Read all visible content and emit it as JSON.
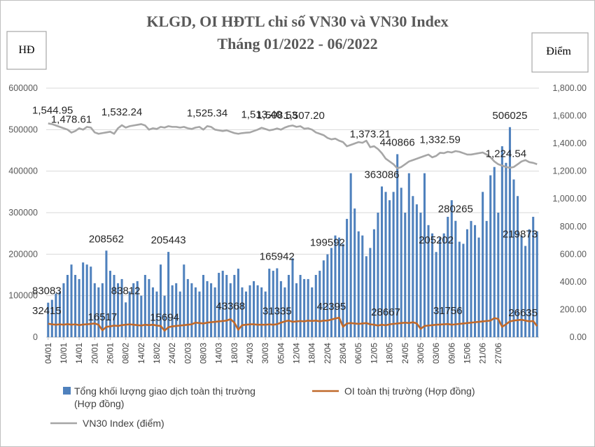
{
  "chart_data": {
    "type": "bar+line",
    "title": "KLGD, OI HĐTL chỉ số VN30 và VN30 Index",
    "subtitle": "Tháng 01/2022 - 06/2022",
    "y_left_label": "HĐ",
    "y_right_label": "Điểm",
    "y_left_ticks": [
      "0",
      "100000",
      "200000",
      "300000",
      "400000",
      "500000",
      "600000"
    ],
    "y_right_ticks": [
      "0.00",
      "200.00",
      "400.00",
      "600.00",
      "800.00",
      "1,000.00",
      "1,200.00",
      "1,400.00",
      "1,600.00",
      "1,800.00"
    ],
    "ylim_left": [
      0,
      600000
    ],
    "ylim_right": [
      0,
      1800
    ],
    "x_tick_labels": [
      "04/01",
      "10/01",
      "14/01",
      "20/01",
      "26/01",
      "08/02",
      "14/02",
      "18/02",
      "24/02",
      "02/03",
      "08/03",
      "14/03",
      "18/03",
      "24/03",
      "30/03",
      "05/04",
      "12/04",
      "18/04",
      "22/04",
      "28/04",
      "06/05",
      "12/05",
      "18/05",
      "24/05",
      "30/05",
      "03/06",
      "09/06",
      "15/06",
      "21/06",
      "27/06"
    ],
    "x_tick_step": 4,
    "grid": true,
    "legend_position": "bottom",
    "colors": {
      "volume": "#4f81bd",
      "oi": "#c0692a",
      "index": "#a6a6a6"
    },
    "series": [
      {
        "name": "Tổng khối lượng giao dịch toàn thị trường (Hợp đồng)",
        "type": "bar",
        "axis": "left",
        "values": [
          83083,
          90000,
          105000,
          110000,
          130000,
          150000,
          175000,
          150000,
          140000,
          180000,
          175000,
          170000,
          130000,
          120000,
          130000,
          208562,
          160000,
          150000,
          130000,
          140000,
          83812,
          110000,
          130000,
          135000,
          100000,
          150000,
          140000,
          120000,
          110000,
          175000,
          100000,
          205443,
          125000,
          130000,
          110000,
          175000,
          140000,
          130000,
          120000,
          110000,
          150000,
          135000,
          130000,
          120000,
          155000,
          160000,
          150000,
          130000,
          150000,
          165000,
          120000,
          110000,
          125000,
          135000,
          125000,
          120000,
          110000,
          165000,
          160000,
          165942,
          135000,
          120000,
          150000,
          190000,
          130000,
          150000,
          140000,
          140000,
          120000,
          150000,
          160000,
          185000,
          199592,
          215000,
          245000,
          240000,
          225000,
          285000,
          395000,
          310000,
          255000,
          245000,
          195000,
          215000,
          260000,
          300000,
          363086,
          350000,
          330000,
          350000,
          440866,
          360000,
          300000,
          395000,
          340000,
          320000,
          300000,
          395000,
          270000,
          250000,
          205202,
          240000,
          250000,
          290000,
          330000,
          280265,
          230000,
          225000,
          260000,
          280000,
          270000,
          240000,
          350000,
          280000,
          390000,
          410000,
          300000,
          460000,
          420000,
          506025,
          380000,
          340000,
          245000,
          219873,
          260000,
          290000,
          255000
        ]
      },
      {
        "name": "OI toàn thị trường (Hợp đồng)",
        "type": "line",
        "axis": "left",
        "values": [
          32415,
          31000,
          30000,
          31000,
          30000,
          31500,
          30000,
          31000,
          29000,
          30500,
          31000,
          32000,
          33000,
          30000,
          16517,
          25000,
          26000,
          28000,
          27000,
          29000,
          30000,
          31000,
          30000,
          29000,
          28000,
          30000,
          29000,
          30000,
          28000,
          27000,
          15694,
          24000,
          26000,
          27000,
          28000,
          29000,
          30000,
          31000,
          35000,
          34000,
          33000,
          35000,
          36000,
          37000,
          38000,
          39000,
          40000,
          43368,
          35000,
          18000,
          29000,
          30000,
          31000,
          31000,
          30000,
          30000,
          30000,
          31000,
          30000,
          31335,
          35000,
          38000,
          40000,
          37000,
          38000,
          39000,
          38000,
          40000,
          39000,
          40000,
          38000,
          40000,
          40000,
          42395,
          45000,
          47000,
          25000,
          33000,
          34000,
          33000,
          32000,
          33000,
          34000,
          31000,
          30000,
          28000,
          30000,
          28667,
          31000,
          32000,
          33000,
          34000,
          35000,
          34000,
          36000,
          33000,
          20000,
          27000,
          28000,
          29000,
          30000,
          30500,
          31000,
          31756,
          30000,
          31000,
          32000,
          33000,
          34000,
          35000,
          36000,
          37000,
          38000,
          39000,
          40000,
          46000,
          44000,
          25000,
          31000,
          38000,
          40000,
          41000,
          42000,
          40000,
          38000,
          39000,
          26635
        ]
      },
      {
        "name": "VN30 Index (điểm)",
        "type": "line",
        "axis": "right",
        "values": [
          1544.95,
          1540,
          1530,
          1520,
          1510,
          1500,
          1478.61,
          1490,
          1510,
          1500,
          1520,
          1515,
          1480,
          1470,
          1475,
          1480,
          1485,
          1470,
          1510,
          1532.24,
          1515,
          1525,
          1530,
          1535,
          1540,
          1530,
          1500,
          1510,
          1505,
          1520,
          1515,
          1525,
          1520,
          1520,
          1515,
          1520,
          1510,
          1505,
          1515,
          1520,
          1500,
          1525.34,
          1520,
          1500,
          1495,
          1490,
          1495,
          1485,
          1475,
          1470,
          1475,
          1478,
          1480,
          1490,
          1500,
          1513.4,
          1505,
          1495,
          1500,
          1508.53,
          1500,
          1515,
          1525,
          1530,
          1520,
          1525,
          1507.2,
          1510,
          1500,
          1480,
          1470,
          1460,
          1440,
          1430,
          1435,
          1420,
          1410,
          1380,
          1390,
          1400,
          1410,
          1405,
          1420,
          1373.21,
          1380,
          1360,
          1330,
          1290,
          1270,
          1250,
          1220,
          1230,
          1250,
          1270,
          1280,
          1290,
          1300,
          1310,
          1320,
          1300,
          1310,
          1332.59,
          1330,
          1340,
          1335,
          1345,
          1340,
          1330,
          1320,
          1320,
          1325,
          1330,
          1335,
          1320,
          1300,
          1270,
          1250,
          1240,
          1230,
          1224.54,
          1230,
          1250,
          1270,
          1280,
          1265,
          1260,
          1250
        ]
      }
    ],
    "annotations": [
      {
        "text": "1,544.95",
        "series": 2,
        "index": 0
      },
      {
        "text": "1,478.61",
        "series": 2,
        "index": 6
      },
      {
        "text": "1,532.24",
        "series": 2,
        "index": 19
      },
      {
        "text": "1,525.34",
        "series": 2,
        "index": 41
      },
      {
        "text": "1,513.40",
        "series": 2,
        "index": 55
      },
      {
        "text": "1,508.53",
        "series": 2,
        "index": 59
      },
      {
        "text": "1,507.20",
        "series": 2,
        "index": 66
      },
      {
        "text": "1,373.21",
        "series": 2,
        "index": 83
      },
      {
        "text": "1,332.59",
        "series": 2,
        "index": 101
      },
      {
        "text": "1,224.54",
        "series": 2,
        "index": 118
      },
      {
        "text": "83083",
        "series": 0,
        "index": 0
      },
      {
        "text": "208562",
        "series": 0,
        "index": 15
      },
      {
        "text": "83812",
        "series": 0,
        "index": 20
      },
      {
        "text": "205443",
        "series": 0,
        "index": 31
      },
      {
        "text": "165942",
        "series": 0,
        "index": 59
      },
      {
        "text": "199592",
        "series": 0,
        "index": 72
      },
      {
        "text": "363086",
        "series": 0,
        "index": 86
      },
      {
        "text": "440866",
        "series": 0,
        "index": 90
      },
      {
        "text": "205202",
        "series": 0,
        "index": 100
      },
      {
        "text": "280265",
        "series": 0,
        "index": 105
      },
      {
        "text": "506025",
        "series": 0,
        "index": 119
      },
      {
        "text": "219873",
        "series": 0,
        "index": 123
      },
      {
        "text": "32415",
        "series": 1,
        "index": 0
      },
      {
        "text": "16517",
        "series": 1,
        "index": 14
      },
      {
        "text": "15694",
        "series": 1,
        "index": 30
      },
      {
        "text": "43368",
        "series": 1,
        "index": 47
      },
      {
        "text": "31335",
        "series": 1,
        "index": 59
      },
      {
        "text": "42395",
        "series": 1,
        "index": 73
      },
      {
        "text": "28667",
        "series": 1,
        "index": 87
      },
      {
        "text": "31756",
        "series": 1,
        "index": 103
      },
      {
        "text": "26635",
        "series": 1,
        "index": 126
      }
    ]
  }
}
